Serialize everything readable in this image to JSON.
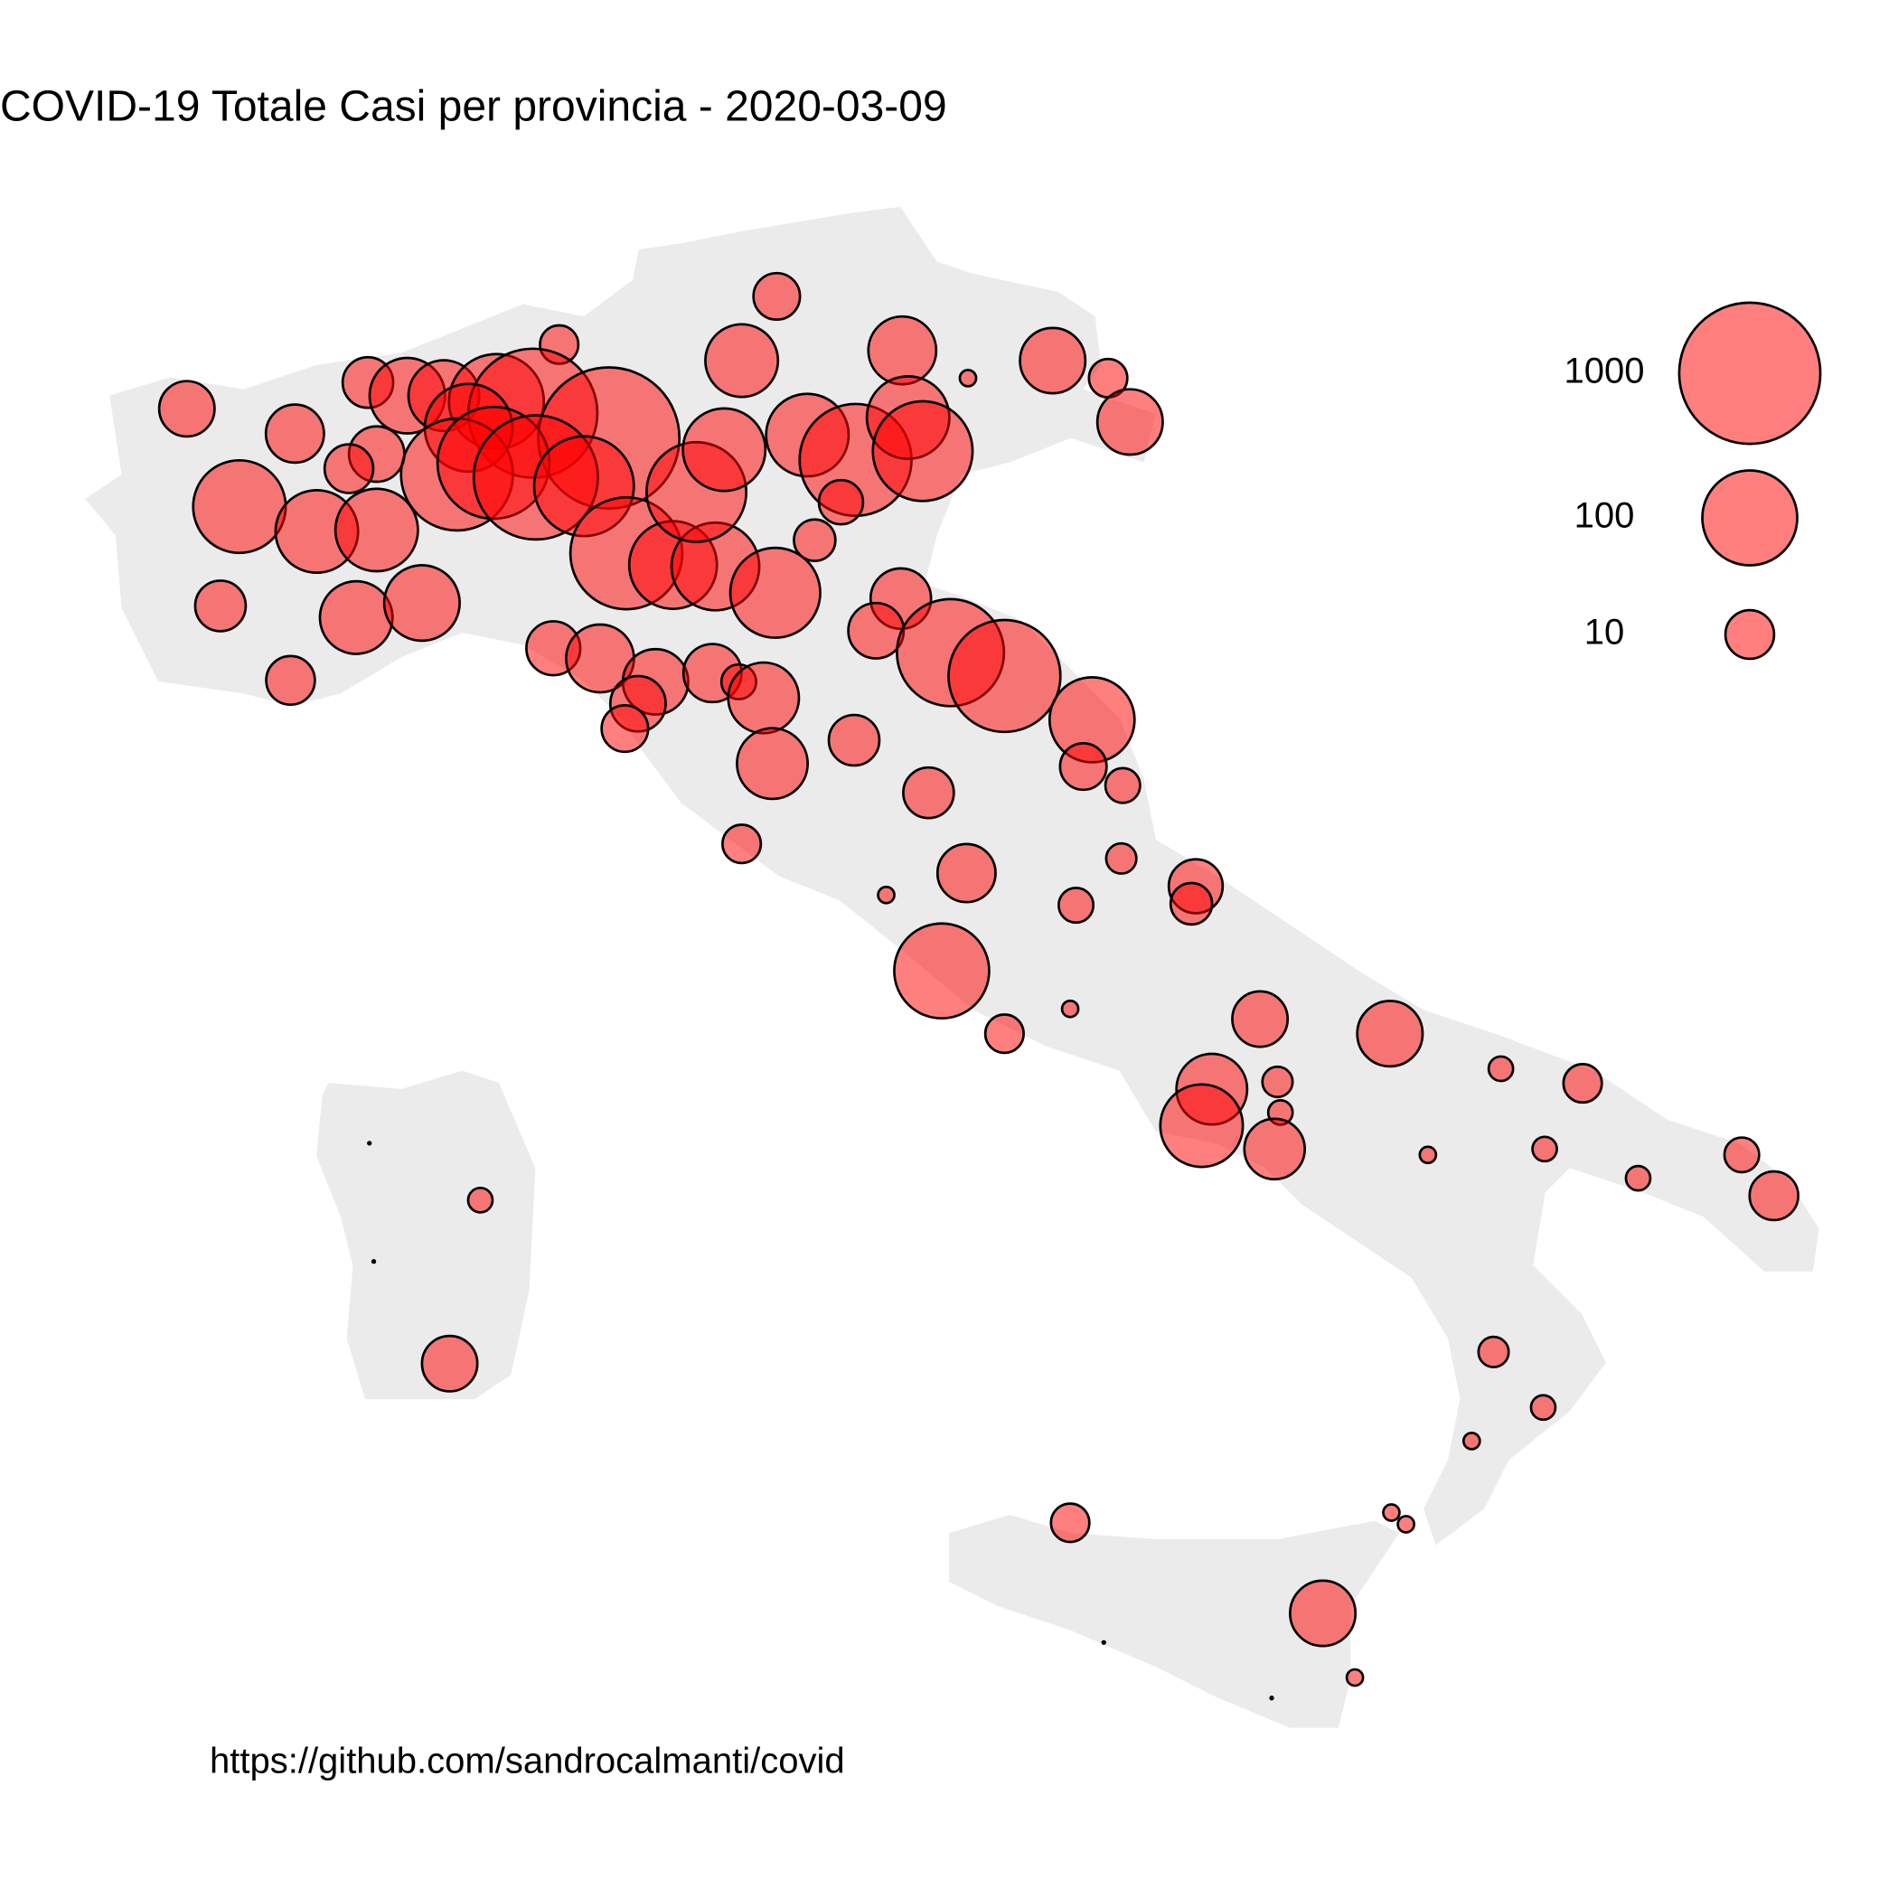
{
  "chart_data": {
    "type": "bubble-map",
    "title": "COVID-19  Totale Casi per provincia - 2020-03-09",
    "caption": "https://github.com/sandrocalmanti/covid",
    "color": "#ff0000",
    "xlim": [
      6.0,
      19.0
    ],
    "ylim": [
      35.5,
      48.5
    ],
    "size_legend": [
      1000,
      100,
      10
    ],
    "legend_position": "right",
    "x": [
      11.32,
      11.08,
      12.18,
      12.63,
      13.21,
      13.59,
      13.74,
      9.83,
      7.28,
      8.02,
      8.52,
      8.79,
      9.04,
      9.4,
      9.65,
      10.17,
      9.21,
      9.13,
      8.58,
      8.39,
      9.38,
      9.67,
      10.0,
      10.29,
      10.61,
      10.9,
      10.77,
      10.96,
      11.53,
      11.86,
      12.22,
      12.32,
      11.76,
      11.58,
      11.31,
      7.64,
      8.17,
      8.58,
      7.51,
      7.99,
      8.44,
      8.89,
      9.79,
      10.11,
      10.49,
      10.37,
      10.28,
      10.88,
      11.06,
      11.23,
      11.29,
      11.85,
      12.17,
      12.0,
      12.51,
      12.88,
      13.48,
      13.42,
      13.69,
      12.36,
      11.08,
      12.62,
      12.07,
      13.68,
      13.37,
      14.19,
      14.16,
      12.45,
      12.88,
      13.33,
      14.63,
      15.52,
      14.3,
      14.23,
      14.75,
      14.77,
      14.73,
      16.28,
      16.84,
      15.78,
      16.58,
      17.22,
      17.93,
      18.15,
      9.29,
      9.08,
      16.23,
      16.57,
      16.08,
      13.33,
      15.53,
      15.63,
      15.06,
      15.28,
      8.53,
      8.56,
      13.56,
      14.71
    ],
    "y": [
      46.47,
      46.03,
      46.1,
      45.91,
      46.03,
      45.91,
      45.61,
      46.14,
      45.7,
      45.53,
      45.88,
      45.79,
      45.79,
      45.75,
      45.67,
      45.5,
      45.57,
      45.25,
      45.39,
      45.29,
      45.33,
      45.23,
      45.17,
      44.71,
      44.63,
      44.62,
      45.13,
      45.42,
      45.52,
      45.35,
      45.64,
      45.41,
      45.06,
      44.8,
      44.44,
      45.03,
      44.86,
      44.87,
      44.35,
      43.84,
      44.27,
      44.37,
      44.06,
      43.99,
      43.83,
      43.68,
      43.51,
      43.89,
      43.83,
      43.72,
      43.27,
      43.43,
      44.4,
      44.18,
      44.03,
      43.87,
      43.57,
      43.25,
      43.12,
      43.07,
      42.72,
      42.52,
      42.37,
      42.62,
      42.3,
      42.43,
      42.31,
      41.85,
      41.42,
      41.59,
      41.52,
      41.42,
      41.04,
      40.79,
      41.09,
      40.88,
      40.63,
      41.18,
      41.08,
      40.59,
      40.63,
      40.43,
      40.59,
      40.31,
      40.28,
      39.16,
      39.24,
      38.86,
      38.63,
      38.07,
      38.14,
      38.06,
      37.45,
      37.01,
      40.67,
      39.86,
      37.25,
      36.87
    ],
    "values": [
      9,
      33,
      26,
      2,
      23,
      6,
      23,
      6,
      14,
      16,
      11,
      38,
      30,
      100,
      545,
      1000,
      70,
      233,
      14,
      10,
      233,
      428,
      127,
      233,
      70,
      70,
      127,
      54,
      54,
      233,
      54,
      127,
      8,
      7,
      78,
      89,
      54,
      54,
      11,
      10,
      33,
      38,
      13,
      26,
      23,
      14,
      9,
      16,
      5,
      30,
      30,
      11,
      18,
      14,
      183,
      233,
      61,
      9,
      5,
      11,
      6,
      16,
      2,
      4,
      5,
      13,
      7,
      100,
      6,
      2,
      14,
      23,
      30,
      54,
      4,
      3,
      18,
      3,
      6,
      2,
      3,
      3,
      5,
      10,
      3,
      14,
      4,
      3,
      2,
      6,
      2,
      2,
      23,
      2,
      1,
      1,
      1,
      1
    ]
  }
}
